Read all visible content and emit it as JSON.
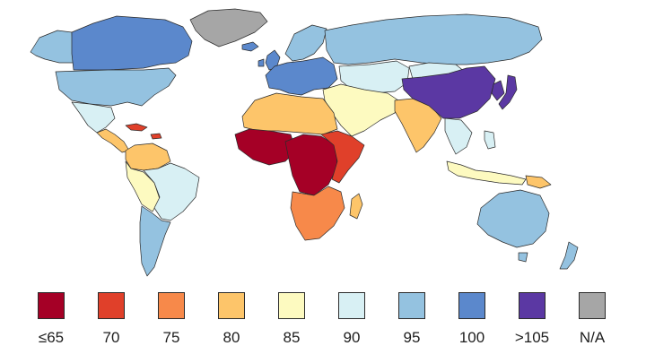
{
  "legend": {
    "items": [
      {
        "key": "le65",
        "label": "≤65",
        "color": "#a50026"
      },
      {
        "key": "70",
        "label": "70",
        "color": "#e0402a"
      },
      {
        "key": "75",
        "label": "75",
        "color": "#f7894a"
      },
      {
        "key": "80",
        "label": "80",
        "color": "#fdc56a"
      },
      {
        "key": "85",
        "label": "85",
        "color": "#fdfac0"
      },
      {
        "key": "90",
        "label": "90",
        "color": "#d8f0f4"
      },
      {
        "key": "95",
        "label": "95",
        "color": "#94c2e0"
      },
      {
        "key": "100",
        "label": "100",
        "color": "#5b88cc"
      },
      {
        "key": "gt105",
        "label": ">105",
        "color": "#5b38a3"
      },
      {
        "key": "na",
        "label": "N/A",
        "color": "#a6a6a6"
      }
    ]
  },
  "regions": [
    {
      "id": "greenland",
      "class": "na"
    },
    {
      "id": "canada",
      "class": "100"
    },
    {
      "id": "usa",
      "class": "95"
    },
    {
      "id": "alaska",
      "class": "95"
    },
    {
      "id": "mexico",
      "class": "90"
    },
    {
      "id": "central-america",
      "class": "80"
    },
    {
      "id": "caribbean",
      "class": "70"
    },
    {
      "id": "colombia-venezuela",
      "class": "80"
    },
    {
      "id": "ecuador-peru-bolivia",
      "class": "85"
    },
    {
      "id": "brazil",
      "class": "90"
    },
    {
      "id": "argentina-chile",
      "class": "95"
    },
    {
      "id": "europe",
      "class": "100"
    },
    {
      "id": "iceland",
      "class": "100"
    },
    {
      "id": "uk-ireland",
      "class": "100"
    },
    {
      "id": "scandinavia",
      "class": "95"
    },
    {
      "id": "russia",
      "class": "95"
    },
    {
      "id": "kazakhstan-central-asia",
      "class": "90"
    },
    {
      "id": "middle-east",
      "class": "85"
    },
    {
      "id": "north-africa",
      "class": "80"
    },
    {
      "id": "west-africa",
      "class": "le65"
    },
    {
      "id": "central-africa",
      "class": "le65"
    },
    {
      "id": "east-africa",
      "class": "70"
    },
    {
      "id": "southern-africa",
      "class": "75"
    },
    {
      "id": "madagascar",
      "class": "80"
    },
    {
      "id": "india",
      "class": "80"
    },
    {
      "id": "china",
      "class": "gt105"
    },
    {
      "id": "mongolia",
      "class": "90"
    },
    {
      "id": "japan",
      "class": "gt105"
    },
    {
      "id": "korea",
      "class": "gt105"
    },
    {
      "id": "southeast-asia",
      "class": "90"
    },
    {
      "id": "indonesia",
      "class": "85"
    },
    {
      "id": "philippines",
      "class": "90"
    },
    {
      "id": "papua",
      "class": "80"
    },
    {
      "id": "australia",
      "class": "95"
    },
    {
      "id": "new-zealand",
      "class": "95"
    }
  ]
}
